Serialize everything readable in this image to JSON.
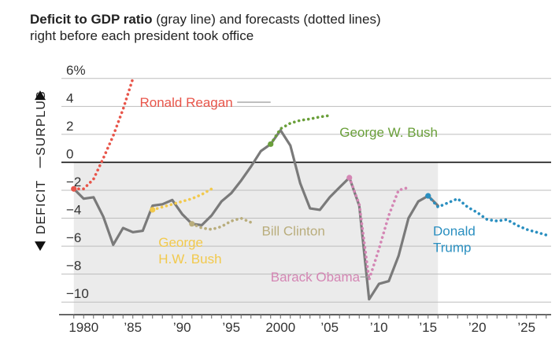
{
  "title": {
    "bold": "Deficit to GDP ratio",
    "rest_line1": " (gray line) and forecasts (dotted lines)",
    "line2": "right before each president took office"
  },
  "side_labels": {
    "surplus": "SURPLUS",
    "deficit": "DEFICIT"
  },
  "colors": {
    "actual": "#7a7a7a",
    "shade": "#ebebeb",
    "grid": "#bdbdbd",
    "zero": "#111111",
    "reagan": "#e8554a",
    "hwbush": "#f2c94c",
    "clinton": "#b9ad7c",
    "gwbush": "#6a9f3a",
    "obama": "#d486b4",
    "trump": "#2a8fc0"
  },
  "chart_data": {
    "type": "line",
    "xlim": [
      1977.5,
      2027.5
    ],
    "ylim": [
      -11,
      7
    ],
    "y_ticks": [
      6,
      4,
      2,
      0,
      -2,
      -4,
      -6,
      -8,
      -10
    ],
    "y_tick_labels": [
      "6%",
      "4",
      "2",
      "0",
      "−2",
      "−4",
      "−6",
      "−8",
      "−10"
    ],
    "x_ticks": [
      1980,
      1985,
      1990,
      1995,
      2000,
      2005,
      2010,
      2015,
      2020,
      2025
    ],
    "x_tick_labels": [
      "1980",
      "’85",
      "’90",
      "’95",
      "2000",
      "’05",
      "’10",
      "’15",
      "’20",
      "’25"
    ],
    "grid": true,
    "shaded_range": [
      1979,
      2016
    ],
    "series": [
      {
        "key": "actual",
        "style": "solid",
        "x": [
          1979,
          1980,
          1981,
          1982,
          1983,
          1984,
          1985,
          1986,
          1987,
          1988,
          1989,
          1990,
          1991,
          1992,
          1993,
          1994,
          1995,
          1996,
          1997,
          1998,
          1999,
          2000,
          2001,
          2002,
          2003,
          2004,
          2005,
          2006,
          2007,
          2008,
          2009,
          2010,
          2011,
          2012,
          2013,
          2014,
          2015,
          2016
        ],
        "y": [
          -1.9,
          -2.6,
          -2.5,
          -3.9,
          -5.9,
          -4.7,
          -5.0,
          -4.9,
          -3.1,
          -3.0,
          -2.7,
          -3.7,
          -4.4,
          -4.5,
          -3.8,
          -2.8,
          -2.2,
          -1.3,
          -0.3,
          0.8,
          1.3,
          2.3,
          1.2,
          -1.5,
          -3.3,
          -3.4,
          -2.5,
          -1.8,
          -1.1,
          -3.1,
          -9.8,
          -8.7,
          -8.5,
          -6.7,
          -4.0,
          -2.8,
          -2.4,
          -3.1
        ]
      },
      {
        "key": "reagan",
        "name": "Ronald Reagan",
        "style": "dotted",
        "x": [
          1979,
          1980,
          1981,
          1982,
          1983,
          1984,
          1985
        ],
        "y": [
          -1.9,
          -1.9,
          -1.2,
          0.3,
          1.9,
          3.8,
          6.0
        ]
      },
      {
        "key": "hwbush",
        "name": "George\nH.W. Bush",
        "style": "dotted",
        "x": [
          1987,
          1988,
          1989,
          1990,
          1991,
          1992,
          1993
        ],
        "y": [
          -3.4,
          -3.2,
          -3.0,
          -2.8,
          -2.6,
          -2.3,
          -1.9
        ]
      },
      {
        "key": "clinton",
        "name": "Bill Clinton",
        "style": "dotted",
        "x": [
          1991,
          1992,
          1993,
          1994,
          1995,
          1996,
          1997
        ],
        "y": [
          -4.4,
          -4.7,
          -4.8,
          -4.6,
          -4.2,
          -4.0,
          -4.3
        ]
      },
      {
        "key": "gwbush",
        "name": "George W. Bush",
        "style": "dotted",
        "x": [
          1999,
          2000,
          2001,
          2002,
          2003,
          2004,
          2005
        ],
        "y": [
          1.3,
          2.4,
          2.8,
          3.0,
          3.1,
          3.25,
          3.35
        ]
      },
      {
        "key": "obama",
        "name": "Barack Obama",
        "style": "dotted",
        "x": [
          2007,
          2008,
          2009,
          2010,
          2011,
          2012,
          2013
        ],
        "y": [
          -1.1,
          -3.0,
          -8.4,
          -6.2,
          -3.8,
          -2.0,
          -1.8
        ]
      },
      {
        "key": "trump",
        "name": "Donald\nTrump",
        "style": "dotted",
        "x": [
          2015,
          2016,
          2017,
          2018,
          2019,
          2020,
          2021,
          2022,
          2023,
          2024,
          2025,
          2026,
          2027
        ],
        "y": [
          -2.4,
          -3.2,
          -2.9,
          -2.6,
          -3.2,
          -3.6,
          -4.1,
          -4.2,
          -4.1,
          -4.5,
          -4.8,
          -5.0,
          -5.2
        ]
      }
    ],
    "annotations": [
      {
        "key": "reagan",
        "lines": [
          "Ronald Reagan"
        ],
        "x": 1985.7,
        "y": 4.3,
        "color": "#e8554a",
        "leader": [
          1995.6,
          4.3,
          1999.0,
          4.3
        ]
      },
      {
        "key": "gwbush",
        "lines": [
          "George W. Bush"
        ],
        "x": 2006.0,
        "y": 2.15,
        "color": "#6a9f3a"
      },
      {
        "key": "hwbush",
        "lines": [
          "George",
          "H.W. Bush"
        ],
        "x": 1987.6,
        "y": -5.7,
        "color": "#f2c94c"
      },
      {
        "key": "clinton",
        "lines": [
          "Bill Clinton"
        ],
        "x": 1998.1,
        "y": -4.9,
        "color": "#b9ad7c"
      },
      {
        "key": "obama",
        "lines": [
          "Barack Obama"
        ],
        "x": 1999.0,
        "y": -8.2,
        "color": "#d486b4",
        "leader": [
          2008.1,
          -8.2,
          2009.1,
          -8.2
        ]
      },
      {
        "key": "trump",
        "lines": [
          "Donald",
          "Trump"
        ],
        "x": 2015.5,
        "y": -4.9,
        "color": "#2a8fc0"
      }
    ]
  }
}
